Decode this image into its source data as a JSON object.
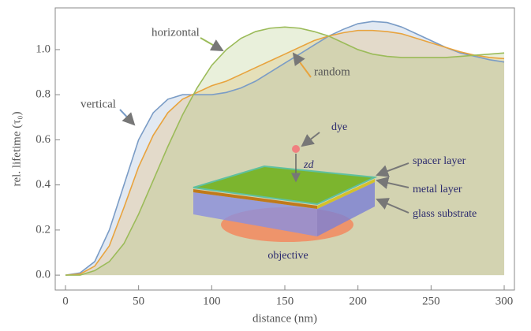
{
  "chart_data": {
    "type": "line",
    "x": [
      0,
      10,
      20,
      30,
      40,
      50,
      60,
      70,
      80,
      90,
      100,
      110,
      120,
      130,
      140,
      150,
      160,
      170,
      180,
      190,
      200,
      210,
      220,
      230,
      240,
      250,
      260,
      270,
      280,
      290,
      300
    ],
    "series": [
      {
        "name": "vertical",
        "color": "#7a9cc6",
        "values": [
          0,
          0.01,
          0.06,
          0.2,
          0.4,
          0.6,
          0.72,
          0.78,
          0.8,
          0.8,
          0.8,
          0.81,
          0.83,
          0.86,
          0.9,
          0.94,
          0.98,
          1.02,
          1.06,
          1.09,
          1.115,
          1.125,
          1.12,
          1.1,
          1.07,
          1.04,
          1.01,
          0.985,
          0.97,
          0.955,
          0.945
        ]
      },
      {
        "name": "random",
        "color": "#e8a33d",
        "values": [
          0,
          0.005,
          0.04,
          0.13,
          0.3,
          0.48,
          0.62,
          0.72,
          0.78,
          0.81,
          0.84,
          0.86,
          0.89,
          0.92,
          0.95,
          0.98,
          1.01,
          1.04,
          1.06,
          1.075,
          1.085,
          1.085,
          1.08,
          1.07,
          1.05,
          1.03,
          1.01,
          0.99,
          0.975,
          0.965,
          0.96
        ]
      },
      {
        "name": "horizontal",
        "color": "#9bbb59",
        "values": [
          0,
          0,
          0.02,
          0.06,
          0.14,
          0.27,
          0.42,
          0.57,
          0.71,
          0.83,
          0.93,
          1.0,
          1.05,
          1.08,
          1.095,
          1.1,
          1.095,
          1.08,
          1.06,
          1.03,
          1.0,
          0.98,
          0.97,
          0.965,
          0.965,
          0.965,
          0.965,
          0.97,
          0.975,
          0.98,
          0.985
        ]
      }
    ],
    "xlabel": "distance (nm)",
    "ylabel": "rel. lifetime (τ₀)",
    "xlim": [
      -7,
      307
    ],
    "xticks": [
      0,
      50,
      100,
      150,
      200,
      250,
      300
    ],
    "ylim": [
      -0.066,
      1.185
    ],
    "yticks": [
      {
        "value": 0,
        "label": "0.0"
      },
      0.2,
      0.4,
      0.6,
      0.8,
      {
        "value": 1,
        "label": "1.0"
      }
    ],
    "inset": {
      "dye": "dye",
      "distance": "zd",
      "spacer": "spacer layer",
      "metal": "metal layer",
      "glass": "glass substrate",
      "objective": "objective"
    }
  }
}
